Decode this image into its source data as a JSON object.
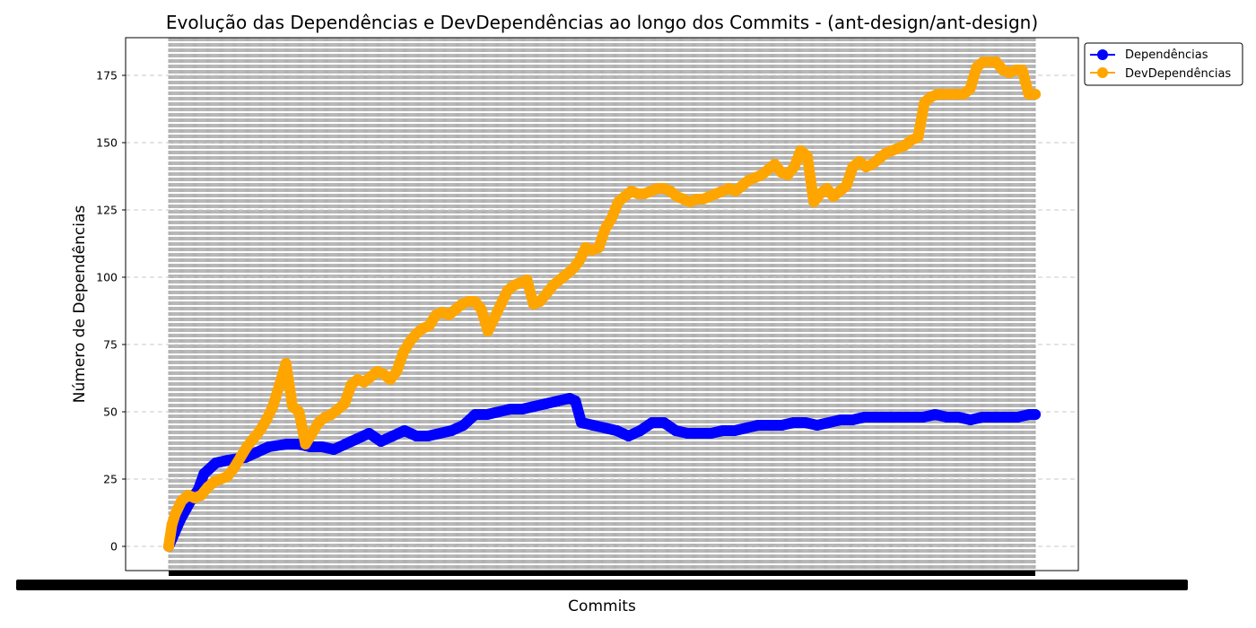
{
  "chart_data": {
    "type": "line",
    "title": "Evolução das Dependências e DevDependências ao longo dos Commits - (ant-design/ant-design)",
    "xlabel": "Commits",
    "ylabel": "Número de Dependências",
    "ylim": [
      -9,
      189
    ],
    "yticks": [
      0,
      25,
      50,
      75,
      100,
      125,
      150,
      175
    ],
    "grid": {
      "y": true,
      "style": "dashed"
    },
    "x_commit_count": 1000,
    "x_tick_labels_note": "commit hash labels overlap into an illegible black band",
    "legend_position": "upper-right-outside",
    "colors": {
      "Dependências": "#0000ff",
      "DevDependências": "#ffa500",
      "vertical_gridlines": "#b0b0b0"
    },
    "series": [
      {
        "name": "Dependências",
        "color": "#0000ff",
        "points": [
          [
            0,
            0
          ],
          [
            1,
            5
          ],
          [
            2,
            10
          ],
          [
            3,
            14
          ],
          [
            4,
            18
          ],
          [
            5,
            21
          ],
          [
            6,
            27
          ],
          [
            8,
            31
          ],
          [
            10,
            32
          ],
          [
            13,
            33
          ],
          [
            15,
            35
          ],
          [
            17,
            37
          ],
          [
            20,
            38
          ],
          [
            22,
            38
          ],
          [
            24,
            37
          ],
          [
            26,
            37
          ],
          [
            28,
            36
          ],
          [
            30,
            38
          ],
          [
            32,
            40
          ],
          [
            34,
            42
          ],
          [
            36,
            39
          ],
          [
            38,
            41
          ],
          [
            40,
            43
          ],
          [
            42,
            41
          ],
          [
            44,
            41
          ],
          [
            46,
            42
          ],
          [
            48,
            43
          ],
          [
            50,
            45
          ],
          [
            52,
            49
          ],
          [
            54,
            49
          ],
          [
            56,
            50
          ],
          [
            58,
            51
          ],
          [
            60,
            51
          ],
          [
            62,
            52
          ],
          [
            64,
            53
          ],
          [
            66,
            54
          ],
          [
            68,
            55
          ],
          [
            69,
            54
          ],
          [
            70,
            46
          ],
          [
            72,
            45
          ],
          [
            74,
            44
          ],
          [
            76,
            43
          ],
          [
            78,
            41
          ],
          [
            80,
            43
          ],
          [
            82,
            46
          ],
          [
            84,
            46
          ],
          [
            86,
            43
          ],
          [
            88,
            42
          ],
          [
            90,
            42
          ],
          [
            92,
            42
          ],
          [
            94,
            43
          ],
          [
            96,
            43
          ],
          [
            98,
            44
          ],
          [
            100,
            45
          ],
          [
            102,
            45
          ],
          [
            104,
            45
          ],
          [
            106,
            46
          ],
          [
            108,
            46
          ],
          [
            110,
            45
          ],
          [
            112,
            46
          ],
          [
            114,
            47
          ],
          [
            116,
            47
          ],
          [
            118,
            48
          ],
          [
            120,
            48
          ],
          [
            122,
            48
          ],
          [
            124,
            48
          ],
          [
            126,
            48
          ],
          [
            128,
            48
          ],
          [
            130,
            49
          ],
          [
            132,
            48
          ],
          [
            134,
            48
          ],
          [
            136,
            47
          ],
          [
            138,
            48
          ],
          [
            140,
            48
          ],
          [
            142,
            48
          ],
          [
            144,
            48
          ],
          [
            146,
            49
          ],
          [
            147,
            49
          ]
        ]
      },
      {
        "name": "DevDependências",
        "color": "#ffa500",
        "points": [
          [
            0,
            0
          ],
          [
            0.5,
            8
          ],
          [
            1,
            12
          ],
          [
            2,
            17
          ],
          [
            3,
            19
          ],
          [
            4,
            18
          ],
          [
            5,
            19
          ],
          [
            6,
            22
          ],
          [
            7,
            24
          ],
          [
            8,
            25
          ],
          [
            9,
            26
          ],
          [
            10,
            29
          ],
          [
            11,
            33
          ],
          [
            12,
            37
          ],
          [
            13,
            40
          ],
          [
            14,
            43
          ],
          [
            15,
            47
          ],
          [
            16,
            52
          ],
          [
            17,
            60
          ],
          [
            18,
            68
          ],
          [
            19,
            52
          ],
          [
            20,
            50
          ],
          [
            21,
            38
          ],
          [
            22,
            42
          ],
          [
            23,
            46
          ],
          [
            24,
            48
          ],
          [
            25,
            49
          ],
          [
            26,
            51
          ],
          [
            27,
            53
          ],
          [
            28,
            60
          ],
          [
            29,
            62
          ],
          [
            30,
            61
          ],
          [
            31,
            63
          ],
          [
            32,
            65
          ],
          [
            33,
            64
          ],
          [
            34,
            62
          ],
          [
            35,
            65
          ],
          [
            36,
            72
          ],
          [
            37,
            76
          ],
          [
            38,
            79
          ],
          [
            39,
            81
          ],
          [
            40,
            82
          ],
          [
            41,
            86
          ],
          [
            42,
            87
          ],
          [
            43,
            86
          ],
          [
            44,
            88
          ],
          [
            45,
            90
          ],
          [
            46,
            91
          ],
          [
            47,
            91
          ],
          [
            48,
            88
          ],
          [
            49,
            80
          ],
          [
            50,
            85
          ],
          [
            51,
            90
          ],
          [
            52,
            95
          ],
          [
            53,
            97
          ],
          [
            54,
            98
          ],
          [
            55,
            99
          ],
          [
            56,
            90
          ],
          [
            57,
            91
          ],
          [
            58,
            94
          ],
          [
            59,
            97
          ],
          [
            60,
            99
          ],
          [
            61,
            101
          ],
          [
            62,
            103
          ],
          [
            63,
            106
          ],
          [
            64,
            111
          ],
          [
            65,
            110
          ],
          [
            66,
            111
          ],
          [
            67,
            118
          ],
          [
            68,
            122
          ],
          [
            69,
            128
          ],
          [
            70,
            130
          ],
          [
            71,
            132
          ],
          [
            72,
            131
          ],
          [
            73,
            131
          ],
          [
            74,
            132
          ],
          [
            75,
            133
          ],
          [
            76,
            133
          ],
          [
            77,
            132
          ],
          [
            78,
            130
          ],
          [
            79,
            129
          ],
          [
            80,
            128
          ],
          [
            81,
            129
          ],
          [
            82,
            129
          ],
          [
            83,
            130
          ],
          [
            84,
            131
          ],
          [
            85,
            132
          ],
          [
            86,
            133
          ],
          [
            87,
            132
          ],
          [
            88,
            134
          ],
          [
            89,
            136
          ],
          [
            90,
            137
          ],
          [
            91,
            138
          ],
          [
            92,
            140
          ],
          [
            93,
            142
          ],
          [
            94,
            139
          ],
          [
            95,
            138
          ],
          [
            96,
            141
          ],
          [
            97,
            147
          ],
          [
            98,
            145
          ],
          [
            99,
            128
          ],
          [
            100,
            131
          ],
          [
            101,
            133
          ],
          [
            102,
            130
          ],
          [
            103,
            132
          ],
          [
            104,
            134
          ],
          [
            105,
            141
          ],
          [
            106,
            143
          ],
          [
            107,
            141
          ],
          [
            108,
            142
          ],
          [
            109,
            144
          ],
          [
            110,
            146
          ],
          [
            111,
            147
          ],
          [
            112,
            148
          ],
          [
            113,
            149
          ],
          [
            114,
            151
          ],
          [
            115,
            152
          ],
          [
            116,
            165
          ],
          [
            117,
            167
          ],
          [
            118,
            168
          ],
          [
            119,
            168
          ],
          [
            120,
            168
          ],
          [
            121,
            168
          ],
          [
            122,
            168
          ],
          [
            123,
            170
          ],
          [
            124,
            178
          ],
          [
            125,
            180
          ],
          [
            126,
            180
          ],
          [
            127,
            180
          ],
          [
            128,
            177
          ],
          [
            129,
            176
          ],
          [
            130,
            177
          ],
          [
            131,
            177
          ],
          [
            132,
            168
          ],
          [
            133,
            168
          ]
        ]
      }
    ]
  },
  "legend": {
    "items": [
      {
        "label": "Dependências",
        "color": "#0000ff"
      },
      {
        "label": "DevDependências",
        "color": "#ffa500"
      }
    ]
  }
}
